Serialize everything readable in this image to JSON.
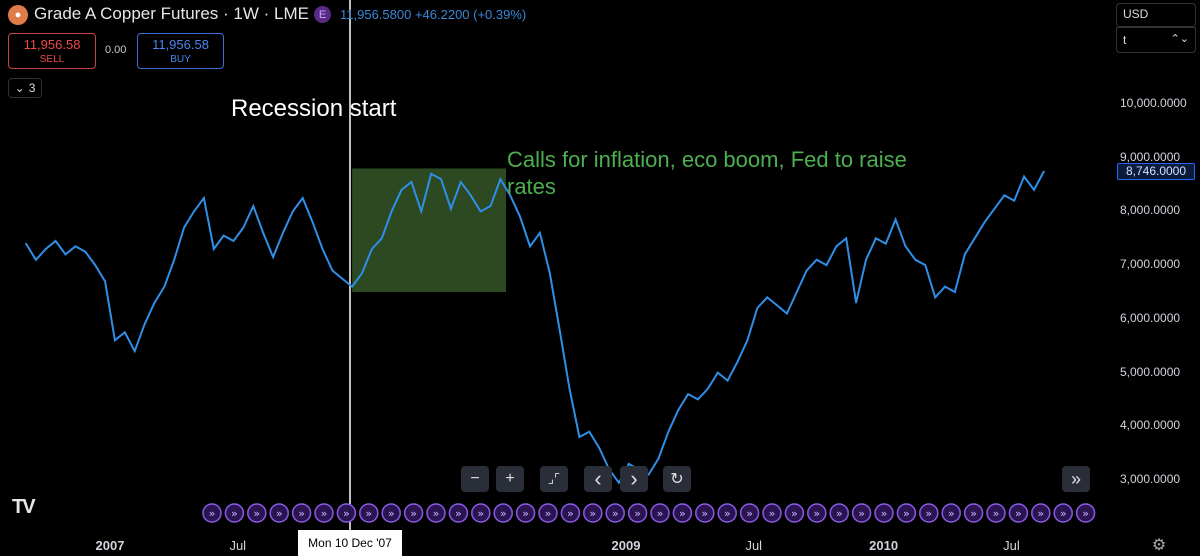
{
  "header": {
    "logo_icon": "copper-coins-icon",
    "title": "Grade A Copper Futures · 1W · LME",
    "exchange_badge": "E",
    "price_line": "11,956.5800 +46.2200 (+0.39%)",
    "sell_value": "11,956.58",
    "sell_label": "SELL",
    "spread": "0.00",
    "buy_value": "11,956.58",
    "buy_label": "BUY",
    "indicators_count": "3"
  },
  "scale": {
    "currency": "USD",
    "unit": "t",
    "last_price": "8,746.0000"
  },
  "annotations": {
    "recession": "Recession start",
    "calls": "Calls for inflation, eco boom, Fed to raise rates"
  },
  "crosshair_label": "Mon 10 Dec '07",
  "toolbar": {
    "zoom_out": "−",
    "zoom_in": "+",
    "reset_icon": "fit-arrows-icon",
    "scroll_left": "‹",
    "scroll_right": "›",
    "refresh_icon": "refresh-icon",
    "goto_realtime": "»"
  },
  "colors": {
    "line": "#2f8fe8",
    "highlight": "#2e4d23",
    "annotation_green": "#4caf50",
    "sell": "#f04848",
    "buy": "#4a86f0"
  },
  "chart_data": {
    "type": "line",
    "title": "Grade A Copper Futures · 1W · LME",
    "ylabel": "USD/t",
    "ylim": [
      2500,
      11000
    ],
    "yticks": [
      "10,000.0000",
      "9,000.0000",
      "8,000.0000",
      "7,000.0000",
      "6,000.0000",
      "5,000.0000",
      "4,000.0000",
      "3,000.0000"
    ],
    "xticks": [
      "2007",
      "Jul",
      "2009",
      "Jul",
      "2010",
      "Jul"
    ],
    "x_range": [
      "2006-09",
      "2010-11"
    ],
    "highlight_region": {
      "from": "2007-12-10",
      "to": "2008-07-15",
      "y_from": 6500,
      "y_to": 8800
    },
    "series": [
      {
        "values": [
          {
            "x": "2006-09-04",
            "y": 7400
          },
          {
            "x": "2006-09-18",
            "y": 7100
          },
          {
            "x": "2006-10-02",
            "y": 7300
          },
          {
            "x": "2006-10-16",
            "y": 7450
          },
          {
            "x": "2006-10-30",
            "y": 7200
          },
          {
            "x": "2006-11-13",
            "y": 7350
          },
          {
            "x": "2006-11-27",
            "y": 7250
          },
          {
            "x": "2006-12-11",
            "y": 7000
          },
          {
            "x": "2006-12-25",
            "y": 6700
          },
          {
            "x": "2007-01-08",
            "y": 5600
          },
          {
            "x": "2007-01-22",
            "y": 5750
          },
          {
            "x": "2007-02-05",
            "y": 5400
          },
          {
            "x": "2007-02-19",
            "y": 5900
          },
          {
            "x": "2007-03-05",
            "y": 6300
          },
          {
            "x": "2007-03-19",
            "y": 6600
          },
          {
            "x": "2007-04-02",
            "y": 7100
          },
          {
            "x": "2007-04-16",
            "y": 7700
          },
          {
            "x": "2007-04-30",
            "y": 8000
          },
          {
            "x": "2007-05-14",
            "y": 8250
          },
          {
            "x": "2007-05-28",
            "y": 7300
          },
          {
            "x": "2007-06-11",
            "y": 7550
          },
          {
            "x": "2007-06-25",
            "y": 7450
          },
          {
            "x": "2007-07-09",
            "y": 7700
          },
          {
            "x": "2007-07-23",
            "y": 8100
          },
          {
            "x": "2007-08-06",
            "y": 7600
          },
          {
            "x": "2007-08-20",
            "y": 7150
          },
          {
            "x": "2007-09-03",
            "y": 7600
          },
          {
            "x": "2007-09-17",
            "y": 8000
          },
          {
            "x": "2007-10-01",
            "y": 8250
          },
          {
            "x": "2007-10-15",
            "y": 7800
          },
          {
            "x": "2007-10-29",
            "y": 7300
          },
          {
            "x": "2007-11-12",
            "y": 6900
          },
          {
            "x": "2007-11-26",
            "y": 6750
          },
          {
            "x": "2007-12-10",
            "y": 6600
          },
          {
            "x": "2007-12-24",
            "y": 6850
          },
          {
            "x": "2008-01-07",
            "y": 7300
          },
          {
            "x": "2008-01-21",
            "y": 7500
          },
          {
            "x": "2008-02-04",
            "y": 8000
          },
          {
            "x": "2008-02-18",
            "y": 8400
          },
          {
            "x": "2008-03-03",
            "y": 8550
          },
          {
            "x": "2008-03-17",
            "y": 8000
          },
          {
            "x": "2008-03-31",
            "y": 8700
          },
          {
            "x": "2008-04-14",
            "y": 8600
          },
          {
            "x": "2008-04-28",
            "y": 8050
          },
          {
            "x": "2008-05-12",
            "y": 8550
          },
          {
            "x": "2008-05-26",
            "y": 8300
          },
          {
            "x": "2008-06-09",
            "y": 8000
          },
          {
            "x": "2008-06-23",
            "y": 8100
          },
          {
            "x": "2008-07-07",
            "y": 8600
          },
          {
            "x": "2008-07-21",
            "y": 8300
          },
          {
            "x": "2008-08-04",
            "y": 7900
          },
          {
            "x": "2008-08-18",
            "y": 7350
          },
          {
            "x": "2008-09-01",
            "y": 7600
          },
          {
            "x": "2008-09-15",
            "y": 6850
          },
          {
            "x": "2008-09-29",
            "y": 5800
          },
          {
            "x": "2008-10-13",
            "y": 4700
          },
          {
            "x": "2008-10-27",
            "y": 3800
          },
          {
            "x": "2008-11-10",
            "y": 3900
          },
          {
            "x": "2008-11-24",
            "y": 3600
          },
          {
            "x": "2008-12-08",
            "y": 3200
          },
          {
            "x": "2008-12-22",
            "y": 2950
          },
          {
            "x": "2009-01-05",
            "y": 3300
          },
          {
            "x": "2009-01-19",
            "y": 3200
          },
          {
            "x": "2009-02-02",
            "y": 3100
          },
          {
            "x": "2009-02-16",
            "y": 3400
          },
          {
            "x": "2009-03-02",
            "y": 3900
          },
          {
            "x": "2009-03-16",
            "y": 4300
          },
          {
            "x": "2009-03-30",
            "y": 4600
          },
          {
            "x": "2009-04-13",
            "y": 4500
          },
          {
            "x": "2009-04-27",
            "y": 4700
          },
          {
            "x": "2009-05-11",
            "y": 5000
          },
          {
            "x": "2009-05-25",
            "y": 4850
          },
          {
            "x": "2009-06-08",
            "y": 5200
          },
          {
            "x": "2009-06-22",
            "y": 5600
          },
          {
            "x": "2009-07-06",
            "y": 6200
          },
          {
            "x": "2009-07-20",
            "y": 6400
          },
          {
            "x": "2009-08-03",
            "y": 6250
          },
          {
            "x": "2009-08-17",
            "y": 6100
          },
          {
            "x": "2009-08-31",
            "y": 6500
          },
          {
            "x": "2009-09-14",
            "y": 6900
          },
          {
            "x": "2009-09-28",
            "y": 7100
          },
          {
            "x": "2009-10-12",
            "y": 7000
          },
          {
            "x": "2009-10-26",
            "y": 7350
          },
          {
            "x": "2009-11-09",
            "y": 7500
          },
          {
            "x": "2009-11-23",
            "y": 6300
          },
          {
            "x": "2009-12-07",
            "y": 7100
          },
          {
            "x": "2009-12-21",
            "y": 7500
          },
          {
            "x": "2010-01-04",
            "y": 7400
          },
          {
            "x": "2010-01-18",
            "y": 7850
          },
          {
            "x": "2010-02-01",
            "y": 7350
          },
          {
            "x": "2010-02-15",
            "y": 7100
          },
          {
            "x": "2010-03-01",
            "y": 7000
          },
          {
            "x": "2010-03-15",
            "y": 6400
          },
          {
            "x": "2010-03-29",
            "y": 6600
          },
          {
            "x": "2010-04-12",
            "y": 6500
          },
          {
            "x": "2010-04-26",
            "y": 7200
          },
          {
            "x": "2010-05-10",
            "y": 7500
          },
          {
            "x": "2010-05-24",
            "y": 7800
          },
          {
            "x": "2010-06-07",
            "y": 8050
          },
          {
            "x": "2010-06-21",
            "y": 8300
          },
          {
            "x": "2010-07-05",
            "y": 8200
          },
          {
            "x": "2010-07-19",
            "y": 8650
          },
          {
            "x": "2010-08-02",
            "y": 8400
          },
          {
            "x": "2010-08-16",
            "y": 8746
          }
        ]
      }
    ]
  }
}
